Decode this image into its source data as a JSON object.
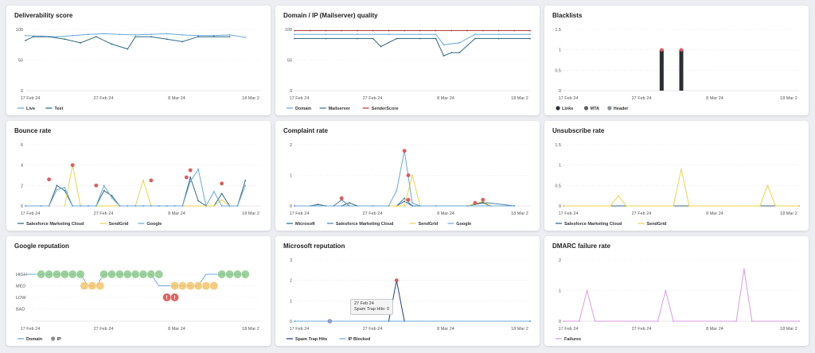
{
  "panels": [
    {
      "title": "Deliverability score",
      "chart_data": {
        "type": "line",
        "y_ticks": [
          "100",
          "50",
          "0"
        ],
        "ylim": [
          0,
          100
        ],
        "x_tick_labels": [
          "17 Feb 24",
          "27 Feb 24",
          "8 Mar 24",
          "18 Mar 2"
        ],
        "xlim": [
          0,
          30
        ],
        "series": [
          {
            "name": "Live",
            "color": "#6aa8d8",
            "x": [
              0,
              2,
              4,
              6,
              8,
              10,
              12,
              14,
              16,
              18,
              20,
              22,
              24,
              26,
              28
            ],
            "values": [
              90,
              89,
              88,
              90,
              92,
              93,
              92,
              91,
              92,
              93,
              91,
              90,
              90,
              91,
              87
            ]
          },
          {
            "name": "Test",
            "color": "#2f6a82",
            "x": [
              0,
              1,
              3,
              5,
              7,
              9,
              11,
              13,
              14,
              16,
              18,
              20,
              22,
              24,
              26
            ],
            "values": [
              82,
              88,
              88,
              84,
              78,
              88,
              76,
              68,
              88,
              88,
              84,
              80,
              88,
              88,
              88
            ]
          }
        ],
        "legend": "bottom-left"
      }
    },
    {
      "title": "Domain / IP (Mailserver) quality",
      "chart_data": {
        "type": "line",
        "y_ticks": [
          "100",
          "50",
          "0"
        ],
        "ylim": [
          0,
          100
        ],
        "x_tick_labels": [
          "17 Feb 24",
          "27 Feb 24",
          "8 Mar 24",
          "18 Mar 2"
        ],
        "xlim": [
          0,
          30
        ],
        "series": [
          {
            "name": "Domain",
            "color": "#6aa8d8",
            "x": [
              0,
              4,
              8,
              12,
              16,
              18,
              19,
              21,
              23,
              26,
              30
            ],
            "values": [
              92,
              92,
              92,
              92,
              92,
              92,
              75,
              78,
              92,
              92,
              92
            ]
          },
          {
            "name": "Mailserver",
            "color": "#2f6a82",
            "x": [
              0,
              4,
              8,
              10,
              11,
              13,
              16,
              18,
              19,
              20,
              21,
              23,
              26,
              30
            ],
            "values": [
              85,
              85,
              85,
              85,
              72,
              85,
              85,
              85,
              57,
              62,
              62,
              85,
              85,
              85
            ]
          },
          {
            "name": "SenderScore",
            "color": "#b03a3a",
            "x": [
              0,
              2,
              4,
              6,
              8,
              10,
              12,
              14,
              16,
              18,
              20,
              22,
              24,
              26,
              28,
              30
            ],
            "values": [
              98,
              98,
              98,
              98,
              98,
              98,
              98,
              98,
              98,
              98,
              98,
              98,
              98,
              98,
              98,
              98
            ]
          }
        ],
        "legend": "bottom-left"
      }
    },
    {
      "title": "Blacklists",
      "chart_data": {
        "type": "bar",
        "y_ticks": [
          "1.5",
          "1",
          "0.5",
          "0"
        ],
        "ylim": [
          0,
          1.5
        ],
        "x_tick_labels": [
          "17 Feb 24",
          "27 Feb 24",
          "8 Mar 24",
          "18 Mar 2"
        ],
        "xlim": [
          0,
          30
        ],
        "series": [
          {
            "name": "Links",
            "color": "#2b2f33",
            "x": [
              12.5,
              15
            ],
            "values": [
              1,
              1
            ]
          },
          {
            "name": "MTA",
            "color": "#5a5e62",
            "x": [],
            "values": []
          },
          {
            "name": "Header",
            "color": "#8a8e92",
            "x": [],
            "values": []
          }
        ],
        "legend": "bottom-left"
      }
    },
    {
      "title": "Bounce rate",
      "chart_data": {
        "type": "line",
        "y_ticks": [
          "6",
          "4",
          "2",
          "0"
        ],
        "ylim": [
          0,
          6
        ],
        "x_tick_labels": [
          "17 Feb 24",
          "27 Feb 24",
          "8 Mar 24",
          "18 Mar 2"
        ],
        "xlim": [
          0,
          30
        ],
        "series": [
          {
            "name": "Salesforce Marketing Cloud",
            "color": "#2f6a82",
            "x": [
              0,
              2,
              3,
              4,
              5,
              6,
              7,
              8,
              9,
              10,
              11,
              12,
              13,
              14,
              15,
              16,
              17,
              18,
              19,
              20,
              21,
              22,
              23,
              24,
              25,
              26,
              27,
              28
            ],
            "values": [
              0,
              0,
              0,
              2,
              1.5,
              0,
              0,
              0,
              0,
              1.5,
              1,
              0,
              0,
              0,
              0,
              0,
              0,
              0,
              0,
              0,
              2.8,
              0.5,
              0,
              0,
              1.2,
              0,
              0,
              2.5
            ]
          },
          {
            "name": "SendGrid",
            "color": "#ebd24a",
            "x": [
              5,
              6,
              7,
              14,
              15,
              16,
              24,
              25,
              26
            ],
            "values": [
              0,
              4,
              0,
              0,
              2.5,
              0,
              0,
              0.6,
              0
            ]
          },
          {
            "name": "Google",
            "color": "#6aa8d8",
            "x": [
              0,
              2,
              3,
              4,
              5,
              6,
              7,
              8,
              9,
              10,
              11,
              12,
              13,
              14,
              15,
              16,
              17,
              18,
              19,
              20,
              21,
              22,
              23,
              24,
              25,
              26,
              27,
              28
            ],
            "values": [
              0,
              0,
              0,
              1.6,
              1.8,
              0,
              0,
              0,
              0,
              2,
              0.8,
              0,
              0,
              0,
              0,
              0,
              0,
              0,
              0,
              0,
              2.4,
              3.6,
              0,
              1.4,
              0,
              0,
              0,
              2
            ]
          }
        ],
        "markers": [
          [
            3,
            2.6
          ],
          [
            6,
            4
          ],
          [
            9,
            2
          ],
          [
            16,
            2.5
          ],
          [
            20.5,
            2.8
          ],
          [
            21,
            3.5
          ],
          [
            25,
            2.2
          ]
        ],
        "legend": "bottom-left"
      }
    },
    {
      "title": "Complaint rate",
      "chart_data": {
        "type": "line",
        "y_ticks": [
          "2",
          "1",
          "0"
        ],
        "ylim": [
          0,
          2
        ],
        "x_tick_labels": [
          "17 Feb 24",
          "27 Feb 24",
          "8 Mar 24",
          "18 Mar 2"
        ],
        "xlim": [
          0,
          30
        ],
        "series": [
          {
            "name": "Microsoft",
            "color": "#2f6a82",
            "x": [
              0,
              2,
              3,
              4,
              6,
              7,
              8,
              10,
              12,
              13,
              14,
              15,
              16,
              18,
              22,
              23,
              24,
              25,
              28
            ],
            "values": [
              0,
              0,
              0.05,
              0,
              0,
              0.1,
              0,
              0,
              0,
              0,
              0.15,
              0,
              0,
              0,
              0,
              0.05,
              0.1,
              0,
              0
            ]
          },
          {
            "name": "Salesforce Marketing Cloud",
            "color": "#4a7fb0",
            "x": [
              0,
              5,
              6,
              7,
              13,
              14,
              15,
              22,
              23,
              24,
              28
            ],
            "values": [
              0,
              0,
              0.2,
              0,
              0,
              0.25,
              0,
              0,
              0.06,
              0.12,
              0
            ]
          },
          {
            "name": "SendGrid",
            "color": "#ebd24a",
            "x": [
              0,
              13,
              14,
              15,
              16,
              22,
              24,
              25,
              28
            ],
            "values": [
              0,
              0,
              0,
              1,
              0,
              0,
              0.15,
              0,
              0
            ]
          },
          {
            "name": "Google",
            "color": "#6aa8d8",
            "x": [
              0,
              12,
              13,
              14,
              15,
              16,
              28
            ],
            "values": [
              0,
              0,
              0.5,
              1.8,
              0.1,
              0,
              0
            ]
          }
        ],
        "markers": [
          [
            6,
            0.25
          ],
          [
            14,
            1.8
          ],
          [
            14.5,
            1.0
          ],
          [
            14.5,
            0.2
          ],
          [
            23,
            0.1
          ],
          [
            24,
            0.2
          ]
        ],
        "legend": "bottom-left"
      }
    },
    {
      "title": "Unsubscribe rate",
      "chart_data": {
        "type": "line",
        "y_ticks": [
          "1.5",
          "1",
          "0.5",
          "0"
        ],
        "ylim": [
          0,
          1.5
        ],
        "x_tick_labels": [
          "17 Feb 24",
          "27 Feb 24",
          "8 Mar 24",
          "18 Mar 2"
        ],
        "xlim": [
          0,
          30
        ],
        "series": [
          {
            "name": "Salesforce Marketing Cloud",
            "color": "#2f6a82",
            "x": [
              0,
              30
            ],
            "values": [
              0,
              0
            ]
          },
          {
            "name": "SendGrid",
            "color": "#ebd24a",
            "x": [
              0,
              6,
              7,
              8,
              14,
              15,
              16,
              25,
              26,
              27,
              30
            ],
            "values": [
              0,
              0,
              0.25,
              0,
              0,
              0.9,
              0,
              0,
              0.5,
              0,
              0
            ]
          }
        ],
        "legend": "bottom-left"
      }
    },
    {
      "title": "Google reputation",
      "chart_data": {
        "type": "scatter",
        "y_tick_labels": [
          "HIGH",
          "MED",
          "LOW",
          "BAD"
        ],
        "x_tick_labels": [
          "17 Feb 24",
          "27 Feb 24",
          "8 Mar 24",
          "18 Mar 2"
        ],
        "xlim": [
          0,
          30
        ],
        "domain_line": {
          "x": [
            0,
            1,
            2,
            7,
            8,
            9,
            10,
            11,
            16,
            17,
            18,
            19,
            20,
            21,
            22,
            23,
            24,
            25,
            26,
            27,
            28
          ],
          "values": [
            "HIGH",
            "HIGH",
            "HIGH",
            "HIGH",
            "MED",
            "MED",
            "HIGH",
            "HIGH",
            "HIGH",
            "MED",
            "MED",
            "MED",
            "MED",
            "MED",
            "MED",
            "HIGH",
            "HIGH",
            "HIGH",
            "HIGH",
            "HIGH",
            "HIGH"
          ]
        },
        "groups": [
          {
            "level": "HIGH",
            "color": "#8cc98c",
            "x": [
              2,
              3,
              4,
              5,
              6,
              7,
              10,
              11,
              12,
              13,
              14,
              15,
              16,
              17,
              25,
              26,
              27,
              28
            ]
          },
          {
            "level": "MED",
            "color": "#f4c36a",
            "x": [
              7.5,
              8.5,
              9.5,
              19,
              20,
              21,
              22,
              23,
              24
            ]
          },
          {
            "level": "LOW",
            "color": "#d94848",
            "x": [
              18,
              19
            ]
          }
        ],
        "legend": "bottom-left",
        "series": [
          {
            "name": "Domain",
            "color": "#6aa8d8"
          },
          {
            "name": "IP",
            "color": "#8a8e92"
          }
        ]
      }
    },
    {
      "title": "Microsoft reputation",
      "chart_data": {
        "type": "line",
        "y_ticks": [
          "3",
          "2",
          "1",
          "0"
        ],
        "ylim": [
          0,
          3
        ],
        "x_tick_labels": [
          "17 Feb 24",
          "27 Feb 24",
          "8 Mar 24",
          "18 Mar 2"
        ],
        "xlim": [
          0,
          30
        ],
        "series": [
          {
            "name": "Spam Trap Hits",
            "color": "#1f3f7a",
            "x": [
              0,
              12,
              13,
              14,
              30
            ],
            "values": [
              0,
              0,
              2,
              0,
              0
            ]
          },
          {
            "name": "IP Blocked",
            "color": "#6aa8d8",
            "x": [
              0,
              30
            ],
            "values": [
              0,
              0
            ]
          }
        ],
        "markers": [
          [
            13,
            2
          ]
        ],
        "tooltip": {
          "date": "27 Feb 24",
          "label": "Spam Trap Hits",
          "value": "0"
        },
        "legend": "bottom-left"
      }
    },
    {
      "title": "DMARC failure rate",
      "chart_data": {
        "type": "line",
        "y_ticks": [
          "2",
          "1",
          "0"
        ],
        "ylim": [
          0,
          2
        ],
        "x_tick_labels": [
          "17 Feb 24",
          "27 Feb 24",
          "8 Mar 24",
          "18 Mar 2"
        ],
        "xlim": [
          0,
          30
        ],
        "series": [
          {
            "name": "Failures",
            "color": "#d99be0",
            "x": [
              0,
              2,
              3,
              4,
              12,
              13,
              14,
              22,
              23,
              24,
              30
            ],
            "values": [
              0,
              0,
              1,
              0,
              0,
              1,
              0,
              0,
              1.7,
              0,
              0
            ]
          }
        ],
        "legend": "bottom-left"
      }
    }
  ]
}
